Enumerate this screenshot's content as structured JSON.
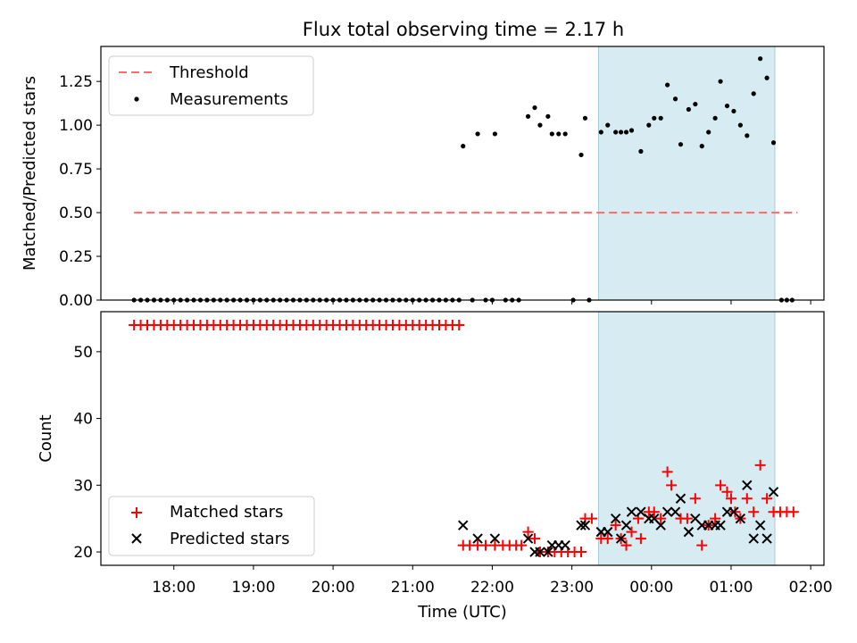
{
  "chart_data": [
    {
      "type": "scatter",
      "title": "Flux total observing time = 2.17 h",
      "xlabel": "",
      "ylabel": "Matched/Predicted stars",
      "ylim": [
        0,
        1.45
      ],
      "yticks": [
        "0.00",
        "0.25",
        "0.50",
        "0.75",
        "1.00",
        "1.25"
      ],
      "highlight_range": [
        "23:20",
        "01:33"
      ],
      "legend_position": "upper left",
      "threshold": {
        "name": "Threshold",
        "value": 0.5,
        "x": [
          "17:30",
          "01:50"
        ],
        "color": "#ff6b6b"
      },
      "series": [
        {
          "name": "Measurements",
          "color": "#000000",
          "points": [
            [
              "17:30",
              0
            ],
            [
              "17:35",
              0
            ],
            [
              "17:40",
              0
            ],
            [
              "17:45",
              0
            ],
            [
              "17:50",
              0
            ],
            [
              "17:55",
              0
            ],
            [
              "18:00",
              0
            ],
            [
              "18:05",
              0
            ],
            [
              "18:10",
              0
            ],
            [
              "18:15",
              0
            ],
            [
              "18:20",
              0
            ],
            [
              "18:25",
              0
            ],
            [
              "18:30",
              0
            ],
            [
              "18:35",
              0
            ],
            [
              "18:40",
              0
            ],
            [
              "18:45",
              0
            ],
            [
              "18:50",
              0
            ],
            [
              "18:55",
              0
            ],
            [
              "19:00",
              0
            ],
            [
              "19:05",
              0
            ],
            [
              "19:10",
              0
            ],
            [
              "19:15",
              0
            ],
            [
              "19:20",
              0
            ],
            [
              "19:25",
              0
            ],
            [
              "19:30",
              0
            ],
            [
              "19:35",
              0
            ],
            [
              "19:40",
              0
            ],
            [
              "19:45",
              0
            ],
            [
              "19:50",
              0
            ],
            [
              "19:55",
              0
            ],
            [
              "20:00",
              0
            ],
            [
              "20:05",
              0
            ],
            [
              "20:10",
              0
            ],
            [
              "20:15",
              0
            ],
            [
              "20:20",
              0
            ],
            [
              "20:25",
              0
            ],
            [
              "20:30",
              0
            ],
            [
              "20:35",
              0
            ],
            [
              "20:40",
              0
            ],
            [
              "20:45",
              0
            ],
            [
              "20:50",
              0
            ],
            [
              "20:55",
              0
            ],
            [
              "21:00",
              0
            ],
            [
              "21:05",
              0
            ],
            [
              "21:10",
              0
            ],
            [
              "21:15",
              0
            ],
            [
              "21:20",
              0
            ],
            [
              "21:25",
              0
            ],
            [
              "21:30",
              0
            ],
            [
              "21:35",
              0
            ],
            [
              "21:45",
              0
            ],
            [
              "21:55",
              0
            ],
            [
              "22:00",
              0
            ],
            [
              "22:10",
              0
            ],
            [
              "22:15",
              0
            ],
            [
              "22:20",
              0
            ],
            [
              "23:01",
              0
            ],
            [
              "23:13",
              0
            ],
            [
              "01:38",
              0
            ],
            [
              "01:42",
              0
            ],
            [
              "01:46",
              0
            ],
            [
              "21:38",
              0.88
            ],
            [
              "21:49",
              0.95
            ],
            [
              "22:02",
              0.95
            ],
            [
              "22:27",
              1.05
            ],
            [
              "22:32",
              1.1
            ],
            [
              "22:36",
              1.0
            ],
            [
              "22:42",
              1.05
            ],
            [
              "22:45",
              0.95
            ],
            [
              "22:50",
              0.95
            ],
            [
              "22:55",
              0.95
            ],
            [
              "23:07",
              0.83
            ],
            [
              "23:10",
              1.04
            ],
            [
              "23:22",
              0.96
            ],
            [
              "23:27",
              1.0
            ],
            [
              "23:33",
              0.96
            ],
            [
              "23:37",
              0.96
            ],
            [
              "23:41",
              0.96
            ],
            [
              "23:45",
              0.97
            ],
            [
              "23:52",
              0.85
            ],
            [
              "23:58",
              1.0
            ],
            [
              "00:02",
              1.04
            ],
            [
              "00:07",
              1.04
            ],
            [
              "00:12",
              1.23
            ],
            [
              "00:18",
              1.15
            ],
            [
              "00:22",
              0.89
            ],
            [
              "00:28",
              1.09
            ],
            [
              "00:33",
              1.12
            ],
            [
              "00:38",
              0.88
            ],
            [
              "00:43",
              0.96
            ],
            [
              "00:48",
              1.04
            ],
            [
              "00:52",
              1.25
            ],
            [
              "00:57",
              1.11
            ],
            [
              "01:02",
              1.08
            ],
            [
              "01:07",
              1.0
            ],
            [
              "01:12",
              0.94
            ],
            [
              "01:17",
              1.18
            ],
            [
              "01:22",
              1.38
            ],
            [
              "01:27",
              1.27
            ],
            [
              "01:32",
              0.9
            ]
          ]
        }
      ]
    },
    {
      "type": "scatter",
      "xlabel": "Time (UTC)",
      "ylabel": "Count",
      "ylim": [
        18,
        56
      ],
      "yticks": [
        "20",
        "30",
        "40",
        "50"
      ],
      "xticks": [
        "18:00",
        "19:00",
        "20:00",
        "21:00",
        "22:00",
        "23:00",
        "00:00",
        "01:00",
        "02:00"
      ],
      "highlight_range": [
        "23:20",
        "01:33"
      ],
      "legend_position": "lower left",
      "series": [
        {
          "name": "Matched stars",
          "marker": "+",
          "color": "#ff0000",
          "points": [
            [
              "17:30",
              54
            ],
            [
              "17:35",
              54
            ],
            [
              "17:40",
              54
            ],
            [
              "17:45",
              54
            ],
            [
              "17:50",
              54
            ],
            [
              "17:55",
              54
            ],
            [
              "18:00",
              54
            ],
            [
              "18:05",
              54
            ],
            [
              "18:10",
              54
            ],
            [
              "18:15",
              54
            ],
            [
              "18:20",
              54
            ],
            [
              "18:25",
              54
            ],
            [
              "18:30",
              54
            ],
            [
              "18:35",
              54
            ],
            [
              "18:40",
              54
            ],
            [
              "18:45",
              54
            ],
            [
              "18:50",
              54
            ],
            [
              "18:55",
              54
            ],
            [
              "19:00",
              54
            ],
            [
              "19:05",
              54
            ],
            [
              "19:10",
              54
            ],
            [
              "19:15",
              54
            ],
            [
              "19:20",
              54
            ],
            [
              "19:25",
              54
            ],
            [
              "19:30",
              54
            ],
            [
              "19:35",
              54
            ],
            [
              "19:40",
              54
            ],
            [
              "19:45",
              54
            ],
            [
              "19:50",
              54
            ],
            [
              "19:55",
              54
            ],
            [
              "20:00",
              54
            ],
            [
              "20:05",
              54
            ],
            [
              "20:10",
              54
            ],
            [
              "20:15",
              54
            ],
            [
              "20:20",
              54
            ],
            [
              "20:25",
              54
            ],
            [
              "20:30",
              54
            ],
            [
              "20:35",
              54
            ],
            [
              "20:40",
              54
            ],
            [
              "20:45",
              54
            ],
            [
              "20:50",
              54
            ],
            [
              "20:55",
              54
            ],
            [
              "21:00",
              54
            ],
            [
              "21:05",
              54
            ],
            [
              "21:10",
              54
            ],
            [
              "21:15",
              54
            ],
            [
              "21:20",
              54
            ],
            [
              "21:25",
              54
            ],
            [
              "21:30",
              54
            ],
            [
              "21:35",
              54
            ],
            [
              "21:38",
              21
            ],
            [
              "21:43",
              21
            ],
            [
              "21:49",
              21
            ],
            [
              "21:55",
              21
            ],
            [
              "22:02",
              21
            ],
            [
              "22:08",
              21
            ],
            [
              "22:13",
              21
            ],
            [
              "22:18",
              21
            ],
            [
              "22:22",
              21
            ],
            [
              "22:27",
              23
            ],
            [
              "22:32",
              22
            ],
            [
              "22:36",
              20
            ],
            [
              "22:42",
              20
            ],
            [
              "22:47",
              20
            ],
            [
              "22:52",
              20
            ],
            [
              "22:57",
              20
            ],
            [
              "23:02",
              20
            ],
            [
              "23:07",
              20
            ],
            [
              "23:10",
              25
            ],
            [
              "23:15",
              25
            ],
            [
              "23:22",
              22
            ],
            [
              "23:27",
              22
            ],
            [
              "23:33",
              24
            ],
            [
              "23:37",
              22
            ],
            [
              "23:41",
              21
            ],
            [
              "23:45",
              23
            ],
            [
              "23:50",
              25
            ],
            [
              "23:52",
              22
            ],
            [
              "23:58",
              26
            ],
            [
              "00:02",
              26
            ],
            [
              "00:07",
              25
            ],
            [
              "00:12",
              32
            ],
            [
              "00:15",
              30
            ],
            [
              "00:22",
              25
            ],
            [
              "00:27",
              25
            ],
            [
              "00:33",
              28
            ],
            [
              "00:38",
              21
            ],
            [
              "00:43",
              24
            ],
            [
              "00:48",
              25
            ],
            [
              "00:52",
              30
            ],
            [
              "00:57",
              29
            ],
            [
              "01:00",
              28
            ],
            [
              "01:03",
              26
            ],
            [
              "01:07",
              25
            ],
            [
              "01:12",
              28
            ],
            [
              "01:17",
              26
            ],
            [
              "01:22",
              33
            ],
            [
              "01:27",
              28
            ],
            [
              "01:32",
              26
            ],
            [
              "01:37",
              26
            ],
            [
              "01:42",
              26
            ],
            [
              "01:47",
              26
            ]
          ]
        },
        {
          "name": "Predicted stars",
          "marker": "x",
          "color": "#000000",
          "points": [
            [
              "21:38",
              24
            ],
            [
              "21:49",
              22
            ],
            [
              "22:02",
              22
            ],
            [
              "22:27",
              22
            ],
            [
              "22:32",
              20
            ],
            [
              "22:36",
              20
            ],
            [
              "22:42",
              20
            ],
            [
              "22:45",
              21
            ],
            [
              "22:50",
              21
            ],
            [
              "22:55",
              21
            ],
            [
              "23:07",
              24
            ],
            [
              "23:10",
              24
            ],
            [
              "23:22",
              23
            ],
            [
              "23:27",
              23
            ],
            [
              "23:33",
              25
            ],
            [
              "23:37",
              22
            ],
            [
              "23:41",
              24
            ],
            [
              "23:45",
              26
            ],
            [
              "23:52",
              26
            ],
            [
              "23:58",
              25
            ],
            [
              "00:02",
              25
            ],
            [
              "00:07",
              24
            ],
            [
              "00:12",
              26
            ],
            [
              "00:18",
              26
            ],
            [
              "00:22",
              28
            ],
            [
              "00:28",
              23
            ],
            [
              "00:33",
              25
            ],
            [
              "00:38",
              24
            ],
            [
              "00:43",
              24
            ],
            [
              "00:48",
              24
            ],
            [
              "00:52",
              24
            ],
            [
              "00:57",
              26
            ],
            [
              "01:02",
              26
            ],
            [
              "01:07",
              25
            ],
            [
              "01:12",
              30
            ],
            [
              "01:17",
              22
            ],
            [
              "01:22",
              24
            ],
            [
              "01:27",
              22
            ],
            [
              "01:32",
              29
            ]
          ]
        }
      ]
    }
  ]
}
